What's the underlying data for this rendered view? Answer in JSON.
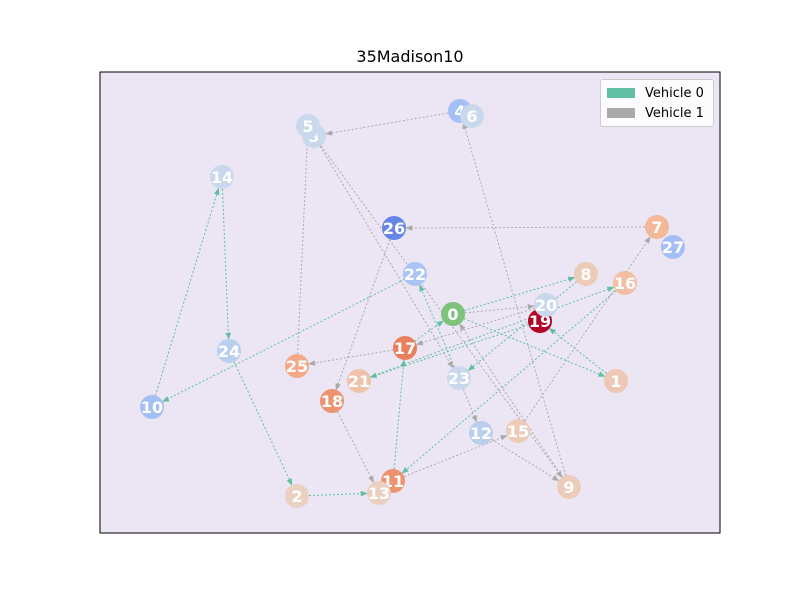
{
  "title": "35Madison10",
  "colors": {
    "background": "#ffffff",
    "plot_area": "#ece6f4",
    "vehicle_0": "#5fbfa0",
    "vehicle_1": "#aaaaaa",
    "depot": "#7fc27c"
  },
  "legend": [
    {
      "label": "Vehicle 0",
      "color": "#5fbfa0"
    },
    {
      "label": "Vehicle 1",
      "color": "#aaaaaa"
    }
  ],
  "nodes": [
    {
      "id": "0",
      "color": "#7fc27c"
    },
    {
      "id": "1",
      "color": "#eec8b5"
    },
    {
      "id": "2",
      "color": "#ead0c1"
    },
    {
      "id": "3",
      "color": "#c9d8ec"
    },
    {
      "id": "4",
      "color": "#a3bff5"
    },
    {
      "id": "5",
      "color": "#c9d8ec"
    },
    {
      "id": "6",
      "color": "#c9d8ec"
    },
    {
      "id": "7",
      "color": "#f3b898"
    },
    {
      "id": "8",
      "color": "#ecccb9"
    },
    {
      "id": "9",
      "color": "#ecccb9"
    },
    {
      "id": "10",
      "color": "#a3bff5"
    },
    {
      "id": "11",
      "color": "#ee9370"
    },
    {
      "id": "12",
      "color": "#b8cfee"
    },
    {
      "id": "13",
      "color": "#ead0c1"
    },
    {
      "id": "14",
      "color": "#c9d8ec"
    },
    {
      "id": "15",
      "color": "#ecccb9"
    },
    {
      "id": "16",
      "color": "#f3bea4"
    },
    {
      "id": "17",
      "color": "#ea7f5e"
    },
    {
      "id": "18",
      "color": "#ee9370"
    },
    {
      "id": "19",
      "color": "#b30326"
    },
    {
      "id": "20",
      "color": "#c9d8ec"
    },
    {
      "id": "21",
      "color": "#eec3aa"
    },
    {
      "id": "22",
      "color": "#a9c4f5"
    },
    {
      "id": "23",
      "color": "#c9d8ec"
    },
    {
      "id": "24",
      "color": "#b8cfee"
    },
    {
      "id": "25",
      "color": "#f3a985"
    },
    {
      "id": "26",
      "color": "#6685e8"
    },
    {
      "id": "27",
      "color": "#a3bff5"
    }
  ],
  "routes": [
    {
      "vehicle": "Vehicle 0",
      "color": "#5fbfa0",
      "edges": [
        [
          "0",
          "1"
        ],
        [
          "1",
          "19"
        ],
        [
          "19",
          "21"
        ],
        [
          "21",
          "16"
        ],
        [
          "16",
          "11"
        ],
        [
          "11",
          "17"
        ],
        [
          "17",
          "0"
        ],
        [
          "0",
          "8"
        ],
        [
          "8",
          "23"
        ],
        [
          "23",
          "22"
        ],
        [
          "22",
          "10"
        ],
        [
          "10",
          "14"
        ],
        [
          "14",
          "24"
        ],
        [
          "24",
          "2"
        ],
        [
          "2",
          "13"
        ]
      ]
    },
    {
      "vehicle": "Vehicle 1",
      "color": "#aaaaaa",
      "edges": [
        [
          "0",
          "20"
        ],
        [
          "20",
          "17"
        ],
        [
          "17",
          "25"
        ],
        [
          "25",
          "5"
        ],
        [
          "3",
          "23"
        ],
        [
          "23",
          "12"
        ],
        [
          "12",
          "9"
        ],
        [
          "9",
          "0"
        ],
        [
          "4",
          "3"
        ],
        [
          "3",
          "9"
        ],
        [
          "9",
          "4"
        ],
        [
          "7",
          "26"
        ],
        [
          "26",
          "18"
        ],
        [
          "18",
          "13"
        ],
        [
          "11",
          "15"
        ],
        [
          "15",
          "7"
        ]
      ]
    }
  ]
}
